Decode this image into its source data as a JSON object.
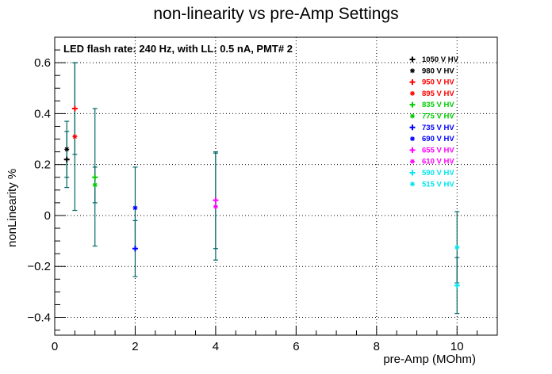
{
  "chart_data": {
    "type": "scatter",
    "title": "non-linearity vs pre-Amp Settings",
    "annotation": "LED flash rate: 240 Hz, with LL: 0.5 nA, PMT# 2",
    "xlabel": "pre-Amp (MOhm)",
    "ylabel": "nonLinearity %",
    "xlim": [
      0,
      11
    ],
    "ylim": [
      -0.47,
      0.7
    ],
    "x_ticks": [
      0,
      2,
      4,
      6,
      8,
      10
    ],
    "x_tick_labels": [
      "0",
      "2",
      "4",
      "6",
      "8",
      "10"
    ],
    "y_ticks": [
      -0.4,
      -0.2,
      0,
      0.2,
      0.4,
      0.6
    ],
    "y_tick_labels": [
      "−0.4",
      "−0.2",
      "0",
      "0.2",
      "0.4",
      "0.6"
    ],
    "grid": true,
    "legend_position": "top-right",
    "series": [
      {
        "name": "1050 V HV",
        "marker": "plus",
        "color": "#000000",
        "points": [
          {
            "x": 0.3,
            "y": 0.22,
            "err": 0.11
          }
        ]
      },
      {
        "name": "980 V HV",
        "marker": "star",
        "color": "#000000",
        "points": [
          {
            "x": 0.3,
            "y": 0.26,
            "err": 0.11
          }
        ]
      },
      {
        "name": "950 V HV",
        "marker": "plus",
        "color": "#ff0000",
        "points": [
          {
            "x": 0.5,
            "y": 0.42,
            "err": 0.18
          }
        ]
      },
      {
        "name": "895 V HV",
        "marker": "star",
        "color": "#ff0000",
        "points": [
          {
            "x": 0.5,
            "y": 0.31,
            "err": 0.29
          }
        ]
      },
      {
        "name": "835 V HV",
        "marker": "plus",
        "color": "#00cc00",
        "points": [
          {
            "x": 1,
            "y": 0.15,
            "err": 0.27
          }
        ]
      },
      {
        "name": "775 V HV",
        "marker": "star",
        "color": "#00cc00",
        "points": [
          {
            "x": 1,
            "y": 0.12,
            "err": 0.07
          }
        ]
      },
      {
        "name": "735 V HV",
        "marker": "plus",
        "color": "#0000ff",
        "points": [
          {
            "x": 2,
            "y": -0.13,
            "err": 0.11
          }
        ]
      },
      {
        "name": "690 V HV",
        "marker": "star",
        "color": "#0000ff",
        "points": [
          {
            "x": 2,
            "y": 0.03,
            "err": 0.16
          }
        ]
      },
      {
        "name": "655 V HV",
        "marker": "plus",
        "color": "#ff00ff",
        "points": [
          {
            "x": 4,
            "y": 0.06,
            "err": 0.19
          }
        ]
      },
      {
        "name": "610 V HV",
        "marker": "star",
        "color": "#ff00ff",
        "points": [
          {
            "x": 4,
            "y": 0.035,
            "err": 0.21
          }
        ]
      },
      {
        "name": "590 V HV",
        "marker": "plus",
        "color": "#00e5ee",
        "points": [
          {
            "x": 10,
            "y": -0.275,
            "err": 0.11
          }
        ]
      },
      {
        "name": "515 V HV",
        "marker": "star",
        "color": "#00e5ee",
        "points": [
          {
            "x": 10,
            "y": -0.125,
            "err": 0.14
          }
        ]
      }
    ],
    "error_bar_color": "#006666"
  }
}
